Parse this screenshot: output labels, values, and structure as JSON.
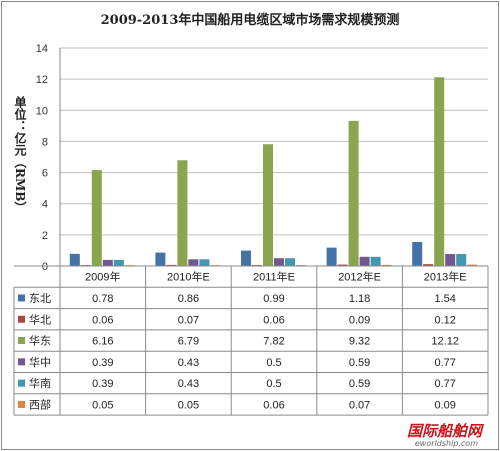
{
  "chart_data": {
    "type": "bar",
    "title": "2009-2013年中国船用电缆区域市场需求规模预测",
    "ylabel": "单位：亿元（RMB）",
    "xlabel": "",
    "ylim": [
      0,
      14
    ],
    "yticks": [
      0,
      2,
      4,
      6,
      8,
      10,
      12,
      14
    ],
    "grid": true,
    "legend": "table-left",
    "categories": [
      "2009年",
      "2010年E",
      "2011年E",
      "2012年E",
      "2013年E"
    ],
    "series": [
      {
        "name": "东北",
        "color": "#4572a7",
        "values": [
          0.78,
          0.86,
          0.99,
          1.18,
          1.54
        ]
      },
      {
        "name": "华北",
        "color": "#aa4643",
        "values": [
          0.06,
          0.07,
          0.06,
          0.09,
          0.12
        ]
      },
      {
        "name": "华东",
        "color": "#89a54e",
        "values": [
          6.16,
          6.79,
          7.82,
          9.32,
          12.12
        ]
      },
      {
        "name": "华中",
        "color": "#71588f",
        "values": [
          0.39,
          0.43,
          0.5,
          0.59,
          0.77
        ]
      },
      {
        "name": "华南",
        "color": "#4198af",
        "values": [
          0.39,
          0.43,
          0.5,
          0.59,
          0.77
        ]
      },
      {
        "name": "西部",
        "color": "#db843d",
        "values": [
          0.05,
          0.05,
          0.06,
          0.07,
          0.09
        ]
      }
    ]
  },
  "watermark": {
    "brand_main": "国际船舶网",
    "url": "eworldship.com"
  }
}
